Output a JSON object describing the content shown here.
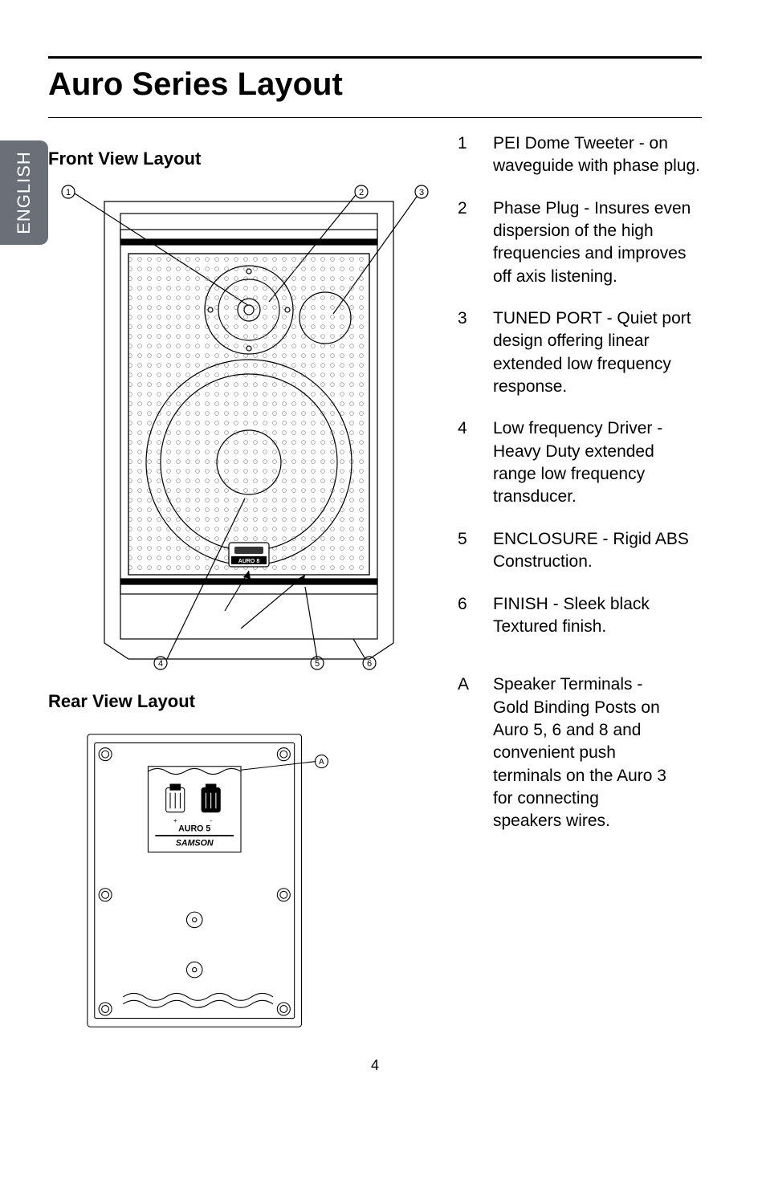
{
  "side_tab": "ENGLISH",
  "title": "Auro Series Layout",
  "front_heading": "Front View Layout",
  "rear_heading": "Rear View Layout",
  "page_number": "4",
  "features": [
    {
      "num": "1",
      "text": "PEI Dome Tweeter -  on waveguide with phase plug."
    },
    {
      "num": "2",
      "text": "Phase Plug - Insures even dispersion of the high frequencies and improves off axis listening."
    },
    {
      "num": "3",
      "text": "TUNED PORT - Quiet port design offering linear extended low frequency response."
    },
    {
      "num": "4",
      "text": "Low frequency Driver - Heavy Duty extended range low frequency transducer."
    },
    {
      "num": "5",
      "text": "ENCLOSURE - Rigid ABS Construction."
    },
    {
      "num": "6",
      "text": "FINISH - Sleek black Textured  finish."
    }
  ],
  "rear_features": [
    {
      "num": "A",
      "text": "Speaker Terminals - Gold Binding Posts on Auro 5, 6 and 8 and convenient push terminals on the Auro 3 for connecting speakers wires."
    }
  ],
  "front_diagram": {
    "callouts": [
      "1",
      "2",
      "3",
      "4",
      "5",
      "6"
    ],
    "badge_label": "AURO 8",
    "stroke": "#000",
    "stroke_width": 1.2,
    "callout_circle_r": 8,
    "callout_font_size": 11
  },
  "rear_diagram": {
    "callouts": [
      "A"
    ],
    "product_label": "AURO 5",
    "brand_label": "SAMSON",
    "stroke": "#000",
    "stroke_width": 1.2
  }
}
